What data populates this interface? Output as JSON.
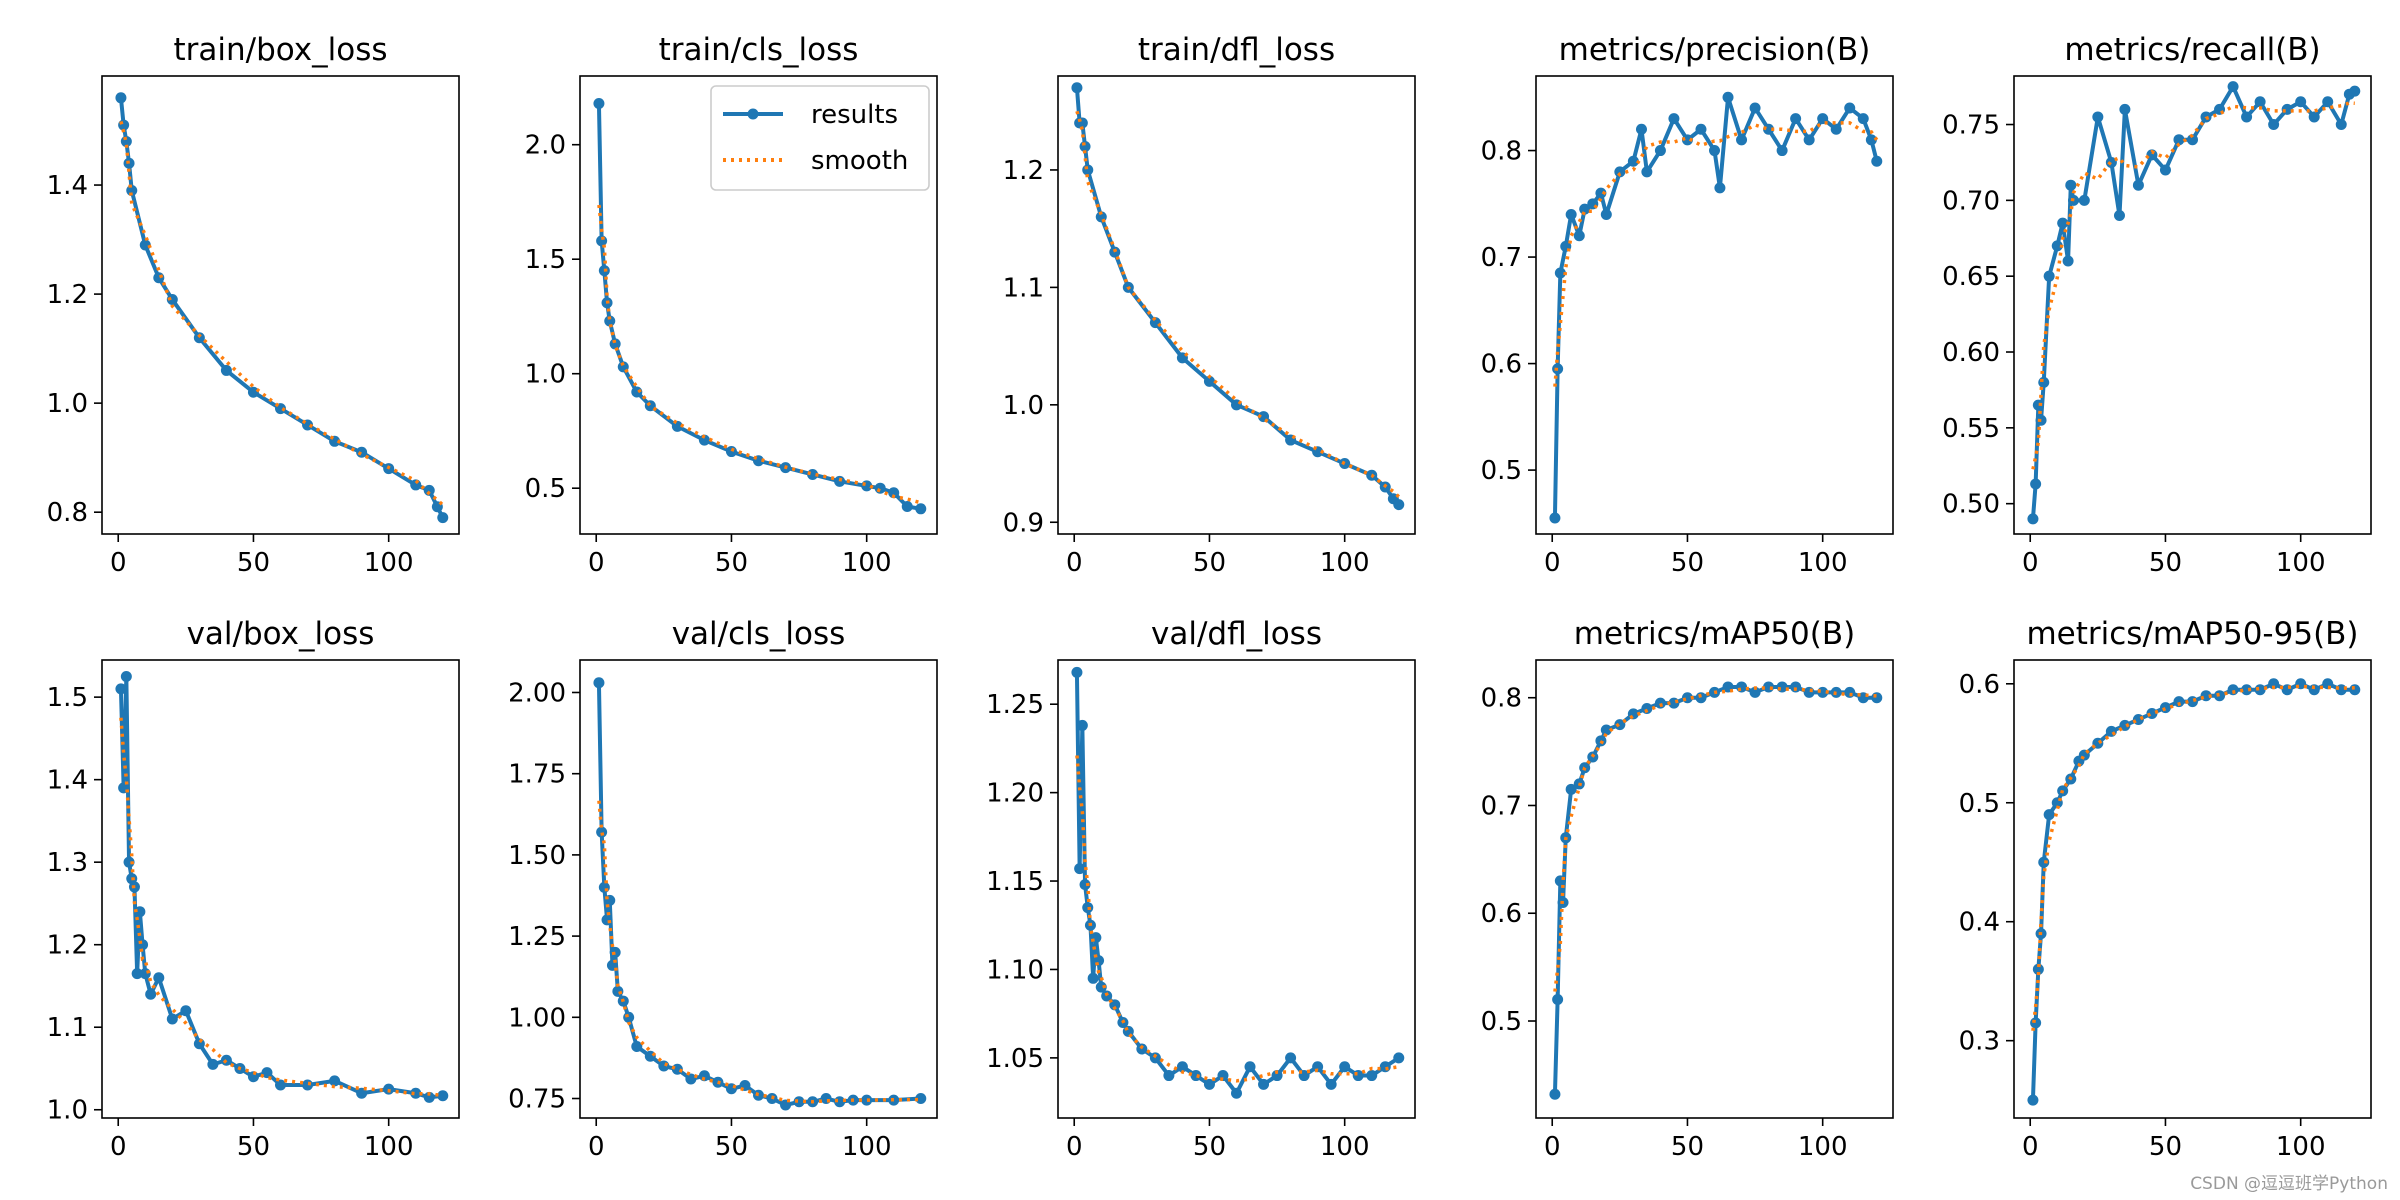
{
  "colors": {
    "results": "#1f77b4",
    "smooth": "#ff7f0e",
    "axis": "#000000"
  },
  "legend": {
    "results": "results",
    "smooth": "smooth",
    "placement": "top-right of train/cls_loss"
  },
  "watermark": "CSDN @逗逗班学Python",
  "chart_data": [
    {
      "type": "line",
      "title": "train/box_loss",
      "xticks": [
        0,
        50,
        100
      ],
      "yticks": [
        "0.8",
        "1.0",
        "1.2",
        "1.4"
      ],
      "xlim": [
        -6,
        126
      ],
      "ylim": [
        0.76,
        1.6
      ],
      "legend": false,
      "series": [
        {
          "name": "results",
          "x": [
            1,
            2,
            3,
            4,
            5,
            10,
            15,
            20,
            30,
            40,
            50,
            60,
            70,
            80,
            90,
            100,
            110,
            115,
            118,
            120
          ],
          "values": [
            1.56,
            1.51,
            1.48,
            1.44,
            1.39,
            1.29,
            1.23,
            1.19,
            1.12,
            1.06,
            1.02,
            0.99,
            0.96,
            0.93,
            0.91,
            0.88,
            0.85,
            0.84,
            0.81,
            0.79
          ]
        }
      ]
    },
    {
      "type": "line",
      "title": "train/cls_loss",
      "xticks": [
        0,
        50,
        100
      ],
      "yticks": [
        "0.5",
        "1.0",
        "1.5",
        "2.0"
      ],
      "xlim": [
        -6,
        126
      ],
      "ylim": [
        0.3,
        2.3
      ],
      "legend": true,
      "series": [
        {
          "name": "results",
          "x": [
            1,
            2,
            3,
            4,
            5,
            7,
            10,
            15,
            20,
            30,
            40,
            50,
            60,
            70,
            80,
            90,
            100,
            105,
            110,
            115,
            120
          ],
          "values": [
            2.18,
            1.58,
            1.45,
            1.31,
            1.23,
            1.13,
            1.03,
            0.92,
            0.86,
            0.77,
            0.71,
            0.66,
            0.62,
            0.59,
            0.56,
            0.53,
            0.51,
            0.5,
            0.48,
            0.42,
            0.41
          ]
        }
      ]
    },
    {
      "type": "line",
      "title": "train/dfl_loss",
      "xticks": [
        0,
        50,
        100
      ],
      "yticks": [
        "0.9",
        "1.0",
        "1.1",
        "1.2"
      ],
      "xlim": [
        -6,
        126
      ],
      "ylim": [
        0.89,
        1.28
      ],
      "legend": false,
      "series": [
        {
          "name": "results",
          "x": [
            1,
            2,
            3,
            4,
            5,
            10,
            15,
            20,
            30,
            40,
            50,
            60,
            70,
            80,
            90,
            100,
            110,
            115,
            118,
            120
          ],
          "values": [
            1.27,
            1.24,
            1.24,
            1.22,
            1.2,
            1.16,
            1.13,
            1.1,
            1.07,
            1.04,
            1.02,
            1.0,
            0.99,
            0.97,
            0.96,
            0.95,
            0.94,
            0.93,
            0.92,
            0.915
          ]
        }
      ]
    },
    {
      "type": "line",
      "title": "metrics/precision(B)",
      "xticks": [
        0,
        50,
        100
      ],
      "yticks": [
        "0.5",
        "0.6",
        "0.7",
        "0.8"
      ],
      "xlim": [
        -6,
        126
      ],
      "ylim": [
        0.44,
        0.87
      ],
      "legend": false,
      "series": [
        {
          "name": "results",
          "x": [
            1,
            2,
            3,
            5,
            7,
            10,
            12,
            15,
            18,
            20,
            25,
            30,
            33,
            35,
            40,
            45,
            50,
            55,
            60,
            62,
            65,
            70,
            75,
            80,
            85,
            90,
            95,
            100,
            105,
            110,
            115,
            118,
            120
          ],
          "values": [
            0.455,
            0.595,
            0.685,
            0.71,
            0.74,
            0.72,
            0.745,
            0.75,
            0.76,
            0.74,
            0.78,
            0.79,
            0.82,
            0.78,
            0.8,
            0.83,
            0.81,
            0.82,
            0.8,
            0.765,
            0.85,
            0.81,
            0.84,
            0.82,
            0.8,
            0.83,
            0.81,
            0.83,
            0.82,
            0.84,
            0.83,
            0.81,
            0.79
          ]
        }
      ]
    },
    {
      "type": "line",
      "title": "metrics/recall(B)",
      "xticks": [
        0,
        50,
        100
      ],
      "yticks": [
        "0.50",
        "0.55",
        "0.60",
        "0.65",
        "0.70",
        "0.75"
      ],
      "xlim": [
        -6,
        126
      ],
      "ylim": [
        0.48,
        0.782
      ],
      "legend": false,
      "series": [
        {
          "name": "results",
          "x": [
            1,
            2,
            3,
            4,
            5,
            7,
            10,
            12,
            14,
            15,
            16,
            20,
            25,
            30,
            33,
            35,
            40,
            45,
            50,
            55,
            60,
            65,
            70,
            75,
            80,
            85,
            90,
            95,
            100,
            105,
            110,
            115,
            118,
            120
          ],
          "values": [
            0.49,
            0.513,
            0.565,
            0.555,
            0.58,
            0.65,
            0.67,
            0.685,
            0.66,
            0.71,
            0.7,
            0.7,
            0.755,
            0.725,
            0.69,
            0.76,
            0.71,
            0.73,
            0.72,
            0.74,
            0.74,
            0.755,
            0.76,
            0.775,
            0.755,
            0.765,
            0.75,
            0.76,
            0.765,
            0.755,
            0.765,
            0.75,
            0.77,
            0.772
          ]
        }
      ]
    },
    {
      "type": "line",
      "title": "val/box_loss",
      "xticks": [
        0,
        50,
        100
      ],
      "yticks": [
        "1.0",
        "1.1",
        "1.2",
        "1.3",
        "1.4",
        "1.5"
      ],
      "xlim": [
        -6,
        126
      ],
      "ylim": [
        0.99,
        1.545
      ],
      "legend": false,
      "series": [
        {
          "name": "results",
          "x": [
            1,
            2,
            3,
            4,
            5,
            6,
            7,
            8,
            9,
            10,
            12,
            15,
            20,
            25,
            30,
            35,
            40,
            45,
            50,
            55,
            60,
            70,
            80,
            90,
            100,
            110,
            115,
            120
          ],
          "values": [
            1.51,
            1.39,
            1.525,
            1.3,
            1.28,
            1.27,
            1.165,
            1.24,
            1.2,
            1.165,
            1.14,
            1.16,
            1.11,
            1.12,
            1.08,
            1.055,
            1.06,
            1.05,
            1.04,
            1.045,
            1.03,
            1.03,
            1.035,
            1.02,
            1.025,
            1.02,
            1.015,
            1.017
          ]
        }
      ]
    },
    {
      "type": "line",
      "title": "val/cls_loss",
      "xticks": [
        0,
        50,
        100
      ],
      "yticks": [
        "0.75",
        "1.00",
        "1.25",
        "1.50",
        "1.75",
        "2.00"
      ],
      "xlim": [
        -6,
        126
      ],
      "ylim": [
        0.69,
        2.1
      ],
      "legend": false,
      "series": [
        {
          "name": "results",
          "x": [
            1,
            2,
            3,
            4,
            5,
            6,
            7,
            8,
            10,
            12,
            15,
            20,
            25,
            30,
            35,
            40,
            45,
            50,
            55,
            60,
            65,
            70,
            75,
            80,
            85,
            90,
            95,
            100,
            110,
            120
          ],
          "values": [
            2.03,
            1.57,
            1.4,
            1.3,
            1.36,
            1.16,
            1.2,
            1.08,
            1.05,
            1.0,
            0.91,
            0.88,
            0.85,
            0.84,
            0.81,
            0.82,
            0.8,
            0.78,
            0.79,
            0.76,
            0.75,
            0.73,
            0.74,
            0.74,
            0.75,
            0.74,
            0.745,
            0.745,
            0.745,
            0.75
          ]
        }
      ]
    },
    {
      "type": "line",
      "title": "val/dfl_loss",
      "xticks": [
        0,
        50,
        100
      ],
      "yticks": [
        "1.05",
        "1.10",
        "1.15",
        "1.20",
        "1.25"
      ],
      "xlim": [
        -6,
        126
      ],
      "ylim": [
        1.016,
        1.275
      ],
      "legend": false,
      "series": [
        {
          "name": "results",
          "x": [
            1,
            2,
            3,
            4,
            5,
            6,
            7,
            8,
            9,
            10,
            12,
            15,
            18,
            20,
            25,
            30,
            35,
            40,
            45,
            50,
            55,
            60,
            65,
            70,
            75,
            80,
            85,
            90,
            95,
            100,
            105,
            110,
            115,
            120
          ],
          "values": [
            1.268,
            1.157,
            1.238,
            1.148,
            1.135,
            1.125,
            1.095,
            1.118,
            1.105,
            1.09,
            1.085,
            1.08,
            1.07,
            1.065,
            1.055,
            1.05,
            1.04,
            1.045,
            1.04,
            1.035,
            1.04,
            1.03,
            1.045,
            1.035,
            1.04,
            1.05,
            1.04,
            1.045,
            1.035,
            1.045,
            1.04,
            1.04,
            1.045,
            1.05
          ]
        }
      ]
    },
    {
      "type": "line",
      "title": "metrics/mAP50(B)",
      "xticks": [
        0,
        50,
        100
      ],
      "yticks": [
        "0.5",
        "0.6",
        "0.7",
        "0.8"
      ],
      "xlim": [
        -6,
        126
      ],
      "ylim": [
        0.41,
        0.835
      ],
      "legend": false,
      "series": [
        {
          "name": "results",
          "x": [
            1,
            2,
            3,
            4,
            5,
            7,
            10,
            12,
            15,
            18,
            20,
            25,
            30,
            35,
            40,
            45,
            50,
            55,
            60,
            65,
            70,
            75,
            80,
            85,
            90,
            95,
            100,
            105,
            110,
            115,
            120
          ],
          "values": [
            0.432,
            0.52,
            0.63,
            0.61,
            0.67,
            0.715,
            0.72,
            0.735,
            0.745,
            0.76,
            0.77,
            0.775,
            0.785,
            0.79,
            0.795,
            0.795,
            0.8,
            0.8,
            0.805,
            0.81,
            0.81,
            0.805,
            0.81,
            0.81,
            0.81,
            0.805,
            0.805,
            0.805,
            0.805,
            0.8,
            0.8
          ]
        }
      ]
    },
    {
      "type": "line",
      "title": "metrics/mAP50-95(B)",
      "xticks": [
        0,
        50,
        100
      ],
      "yticks": [
        "0.3",
        "0.4",
        "0.5",
        "0.6"
      ],
      "xlim": [
        -6,
        126
      ],
      "ylim": [
        0.235,
        0.62
      ],
      "legend": false,
      "series": [
        {
          "name": "results",
          "x": [
            1,
            2,
            3,
            4,
            5,
            7,
            10,
            12,
            15,
            18,
            20,
            25,
            30,
            35,
            40,
            45,
            50,
            55,
            60,
            65,
            70,
            75,
            80,
            85,
            90,
            95,
            100,
            105,
            110,
            115,
            120
          ],
          "values": [
            0.25,
            0.315,
            0.36,
            0.39,
            0.45,
            0.49,
            0.5,
            0.51,
            0.52,
            0.535,
            0.54,
            0.55,
            0.56,
            0.565,
            0.57,
            0.575,
            0.58,
            0.585,
            0.585,
            0.59,
            0.59,
            0.595,
            0.595,
            0.595,
            0.6,
            0.595,
            0.6,
            0.595,
            0.6,
            0.595,
            0.595
          ]
        }
      ]
    }
  ]
}
